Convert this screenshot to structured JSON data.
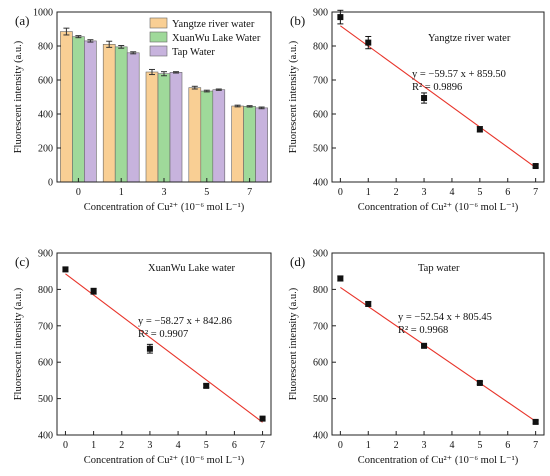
{
  "chart_data": [
    {
      "panel_label": "(a)",
      "type": "bar",
      "categories": [
        "0",
        "1",
        "3",
        "5",
        "7"
      ],
      "series": [
        {
          "name": "Yangtze river water",
          "color": "#f9cf94",
          "values": [
            885,
            810,
            647,
            555,
            447
          ],
          "errors": [
            20,
            18,
            15,
            8,
            5
          ]
        },
        {
          "name": "XuanWu Lake Water",
          "color": "#9fd99a",
          "values": [
            855,
            795,
            637,
            535,
            445
          ],
          "errors": [
            6,
            8,
            12,
            5,
            4
          ]
        },
        {
          "name": "Tap Water",
          "color": "#c7b3dd",
          "values": [
            830,
            760,
            645,
            543,
            436
          ],
          "errors": [
            7,
            6,
            4,
            4,
            5
          ]
        }
      ],
      "xlabel": "Concentration of Cu²⁺ (10⁻⁶ mol L⁻¹)",
      "ylabel": "Fluorescent intensity (a.u.)",
      "ylim": [
        0,
        1000
      ],
      "yticks": [
        "0",
        "200",
        "400",
        "600",
        "800",
        "1000"
      ],
      "legend_position": "top-right"
    },
    {
      "panel_label": "(b)",
      "type": "scatter",
      "title": "Yangtze river water",
      "x": [
        0,
        1,
        3,
        5,
        7
      ],
      "y": [
        885,
        810,
        647,
        555,
        447
      ],
      "errors": [
        20,
        18,
        15,
        8,
        5
      ],
      "fit": {
        "slope": -59.57,
        "intercept": 859.5,
        "x_range": [
          0,
          7
        ],
        "color": "#e8342a"
      },
      "annotation": [
        "y = −59.57 x + 859.50",
        "R² = 0.9896"
      ],
      "xlabel": "Concentration of Cu²⁺ (10⁻⁶ mol L⁻¹)",
      "ylabel": "Fluorescent intensity (a.u.)",
      "xlim": [
        -0.3,
        7.3
      ],
      "ylim": [
        400,
        900
      ],
      "xticks": [
        "0",
        "1",
        "2",
        "3",
        "4",
        "5",
        "6",
        "7"
      ],
      "yticks": [
        "400",
        "500",
        "600",
        "700",
        "800",
        "900"
      ]
    },
    {
      "panel_label": "(c)",
      "type": "scatter",
      "title": "XuanWu Lake water",
      "x": [
        0,
        1,
        3,
        5,
        7
      ],
      "y": [
        855,
        795,
        637,
        535,
        445
      ],
      "errors": [
        6,
        8,
        12,
        5,
        4
      ],
      "fit": {
        "slope": -58.27,
        "intercept": 842.86,
        "x_range": [
          0,
          7
        ],
        "color": "#e8342a"
      },
      "annotation": [
        "y = −58.27 x + 842.86",
        "R² = 0.9907"
      ],
      "xlabel": "Concentration of Cu²⁺ (10⁻⁶ mol L⁻¹)",
      "ylabel": "Fluorescent intensity (a.u.)",
      "xlim": [
        -0.3,
        7.3
      ],
      "ylim": [
        400,
        900
      ],
      "xticks": [
        "0",
        "1",
        "2",
        "3",
        "4",
        "5",
        "6",
        "7"
      ],
      "yticks": [
        "400",
        "500",
        "600",
        "700",
        "800",
        "900"
      ]
    },
    {
      "panel_label": "(d)",
      "type": "scatter",
      "title": "Tap water",
      "x": [
        0,
        1,
        3,
        5,
        7
      ],
      "y": [
        830,
        760,
        645,
        543,
        436
      ],
      "errors": [
        7,
        6,
        4,
        4,
        5
      ],
      "fit": {
        "slope": -52.54,
        "intercept": 805.45,
        "x_range": [
          0,
          7
        ],
        "color": "#e8342a"
      },
      "annotation": [
        "y = −52.54 x + 805.45",
        "R² = 0.9968"
      ],
      "xlabel": "Concentration of Cu²⁺ (10⁻⁶ mol L⁻¹)",
      "ylabel": "Fluorescent intensity (a.u.)",
      "xlim": [
        -0.3,
        7.3
      ],
      "ylim": [
        400,
        900
      ],
      "xticks": [
        "0",
        "1",
        "2",
        "3",
        "4",
        "5",
        "6",
        "7"
      ],
      "yticks": [
        "400",
        "500",
        "600",
        "700",
        "800",
        "900"
      ]
    }
  ]
}
